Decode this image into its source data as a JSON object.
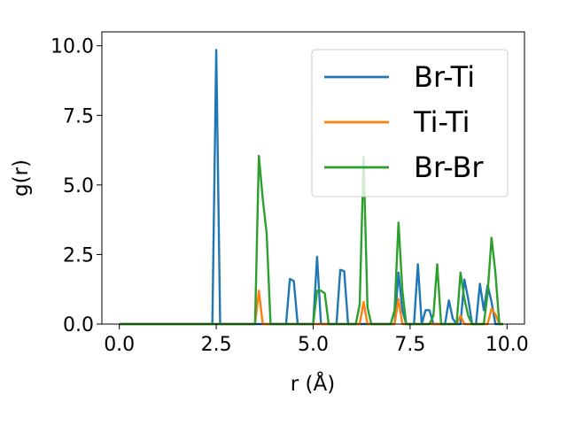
{
  "chart_data": {
    "type": "line",
    "xlabel": "r (Å)",
    "ylabel": "g(r)",
    "xlim": [
      -0.45,
      10.45
    ],
    "ylim": [
      0,
      10.5
    ],
    "xticks": [
      0.0,
      2.5,
      5.0,
      7.5,
      10.0
    ],
    "xtick_labels": [
      "0.0",
      "2.5",
      "5.0",
      "7.5",
      "10.0"
    ],
    "yticks": [
      0.0,
      2.5,
      5.0,
      7.5,
      10.0
    ],
    "ytick_labels": [
      "0.0",
      "2.5",
      "5.0",
      "7.5",
      "10.0"
    ],
    "grid": false,
    "legend_position": "top-right",
    "x": [
      0.0,
      0.1,
      0.2,
      0.3,
      0.4,
      0.5,
      0.6,
      0.7,
      0.8,
      0.9,
      1.0,
      1.1,
      1.2,
      1.3,
      1.4,
      1.5,
      1.6,
      1.7,
      1.8,
      1.9,
      2.0,
      2.1,
      2.2,
      2.3,
      2.4,
      2.5,
      2.6,
      2.7,
      2.8,
      2.9,
      3.0,
      3.1,
      3.2,
      3.3,
      3.4,
      3.5,
      3.6,
      3.7,
      3.8,
      3.9,
      4.0,
      4.1,
      4.2,
      4.3,
      4.4,
      4.5,
      4.6,
      4.7,
      4.8,
      4.9,
      5.0,
      5.1,
      5.2,
      5.3,
      5.4,
      5.5,
      5.6,
      5.7,
      5.8,
      5.9,
      6.0,
      6.1,
      6.2,
      6.3,
      6.4,
      6.5,
      6.6,
      6.7,
      6.8,
      6.9,
      7.0,
      7.1,
      7.2,
      7.3,
      7.4,
      7.5,
      7.6,
      7.7,
      7.8,
      7.9,
      8.0,
      8.1,
      8.2,
      8.3,
      8.4,
      8.5,
      8.6,
      8.7,
      8.8,
      8.9,
      9.0,
      9.1,
      9.2,
      9.3,
      9.4,
      9.5,
      9.6,
      9.7,
      9.8,
      9.9
    ],
    "series": [
      {
        "name": "Br-Ti",
        "color": "#1f77b4",
        "values": [
          0,
          0,
          0,
          0,
          0,
          0,
          0,
          0,
          0,
          0,
          0,
          0,
          0,
          0,
          0,
          0,
          0,
          0,
          0,
          0,
          0,
          0,
          0,
          0,
          0,
          9.85,
          0,
          0,
          0,
          0,
          0,
          0,
          0,
          0,
          0,
          0,
          0,
          0,
          0,
          0,
          0,
          0,
          0,
          0,
          1.62,
          1.55,
          0,
          0,
          0,
          0,
          0,
          2.42,
          0,
          0,
          0,
          0,
          0,
          1.95,
          1.9,
          0,
          0,
          0,
          0,
          0,
          0,
          0,
          0,
          0,
          0,
          0,
          0,
          0,
          1.85,
          0.5,
          0,
          0,
          0,
          2.15,
          0,
          0.5,
          0.5,
          0,
          0,
          0,
          0,
          0.85,
          0.2,
          0,
          0,
          1.6,
          0.9,
          0,
          0,
          1.45,
          0.5,
          1.4,
          0.8,
          0,
          0,
          0
        ]
      },
      {
        "name": "Ti-Ti",
        "color": "#ff7f0e",
        "values": [
          0,
          0,
          0,
          0,
          0,
          0,
          0,
          0,
          0,
          0,
          0,
          0,
          0,
          0,
          0,
          0,
          0,
          0,
          0,
          0,
          0,
          0,
          0,
          0,
          0,
          0,
          0,
          0,
          0,
          0,
          0,
          0,
          0,
          0,
          0,
          0,
          1.2,
          0,
          0,
          0,
          0,
          0,
          0,
          0,
          0,
          0,
          0,
          0,
          0,
          0,
          0,
          0,
          0,
          0,
          0,
          0,
          0,
          0,
          0,
          0,
          0,
          0,
          0,
          0.8,
          0,
          0,
          0,
          0,
          0,
          0,
          0,
          0,
          0.9,
          0,
          0,
          0,
          0,
          0,
          0,
          0,
          0,
          0,
          0,
          0,
          0,
          0,
          0,
          0,
          0.3,
          0,
          0,
          0,
          0,
          0,
          0,
          0,
          0.55,
          0.35,
          0,
          0
        ]
      },
      {
        "name": "Br-Br",
        "color": "#2ca02c",
        "values": [
          0,
          0,
          0,
          0,
          0,
          0,
          0,
          0,
          0,
          0,
          0,
          0,
          0,
          0,
          0,
          0,
          0,
          0,
          0,
          0,
          0,
          0,
          0,
          0,
          0,
          0,
          0,
          0,
          0,
          0,
          0,
          0,
          0,
          0,
          0,
          0,
          6.05,
          4.5,
          3.25,
          0,
          0,
          0,
          0,
          0,
          0,
          0,
          0,
          0,
          0,
          0,
          0,
          1.2,
          1.2,
          1.1,
          0,
          0,
          0,
          0,
          0,
          0,
          0,
          0,
          0.7,
          6.0,
          0.6,
          0,
          0,
          0,
          0,
          0,
          0,
          0.5,
          3.65,
          1.2,
          0,
          0,
          0,
          0,
          0,
          0,
          0,
          0.3,
          2.15,
          0,
          0,
          0,
          0,
          0,
          1.85,
          0.9,
          0.3,
          0,
          0,
          0,
          0,
          1.1,
          3.1,
          1.85,
          0,
          0
        ]
      }
    ]
  }
}
